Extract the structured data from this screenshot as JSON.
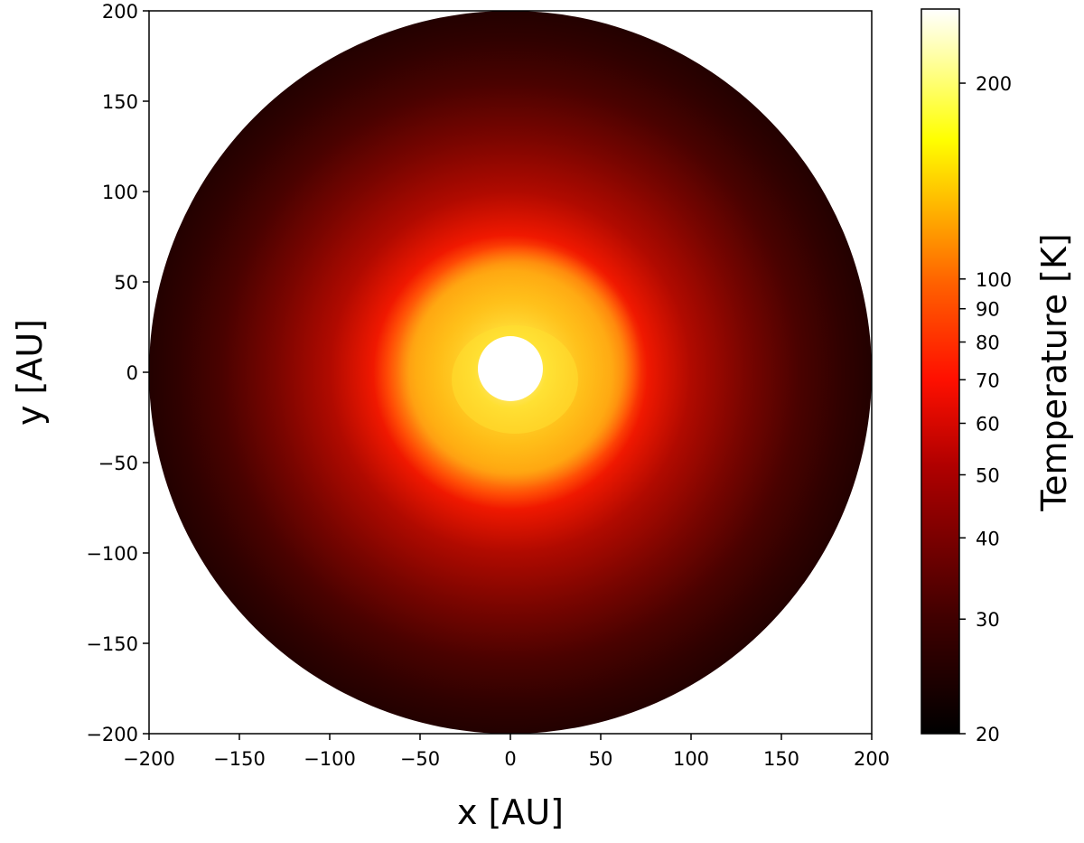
{
  "chart_data": {
    "type": "heatmap",
    "title": "",
    "xlabel": "x [AU]",
    "ylabel": "y [AU]",
    "xlim": [
      -200,
      200
    ],
    "ylim": [
      -200,
      200
    ],
    "x_ticks": [
      -200,
      -150,
      -100,
      -50,
      0,
      50,
      100,
      150,
      200
    ],
    "y_ticks": [
      -200,
      -150,
      -100,
      -50,
      0,
      50,
      100,
      150,
      200
    ],
    "grid": false,
    "colormap": "hot",
    "colorbar": {
      "label": "Temperature [K]",
      "scale": "log",
      "range": [
        20,
        260
      ],
      "ticks": [
        20,
        30,
        40,
        50,
        60,
        70,
        80,
        90,
        100,
        200
      ]
    },
    "field": {
      "description_points": [
        {
          "r_au": 0,
          "temperature_k": 260
        },
        {
          "r_au": 20,
          "temperature_k": 200
        },
        {
          "r_au": 40,
          "temperature_k": 110
        },
        {
          "r_au": 60,
          "temperature_k": 75
        },
        {
          "r_au": 80,
          "temperature_k": 55
        },
        {
          "r_au": 120,
          "temperature_k": 38
        },
        {
          "r_au": 160,
          "temperature_k": 28
        },
        {
          "r_au": 200,
          "temperature_k": 23
        }
      ],
      "inner_cavity_radius_au": 18,
      "outer_radius_au": 200,
      "warm_ring": {
        "center_x_au": 5,
        "center_y_au": 0,
        "radius_au": 60,
        "temperature_k": 105
      }
    }
  }
}
